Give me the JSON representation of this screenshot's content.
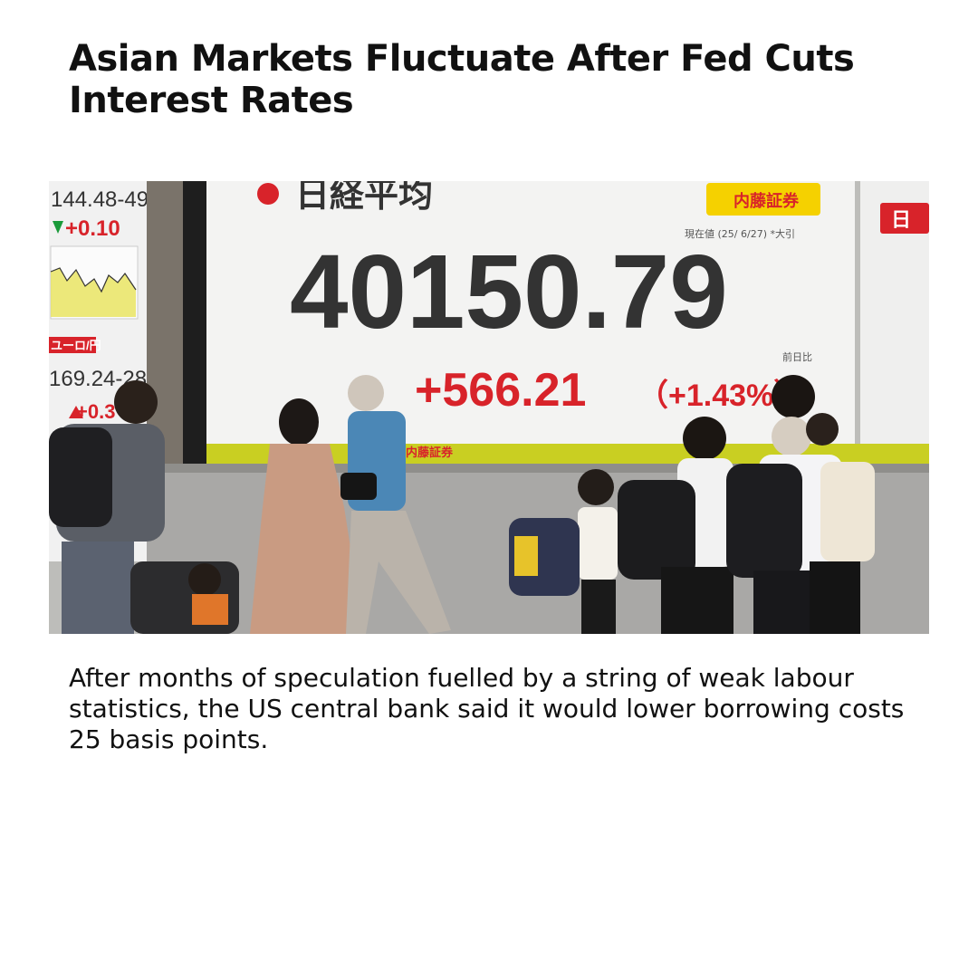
{
  "article": {
    "headline": "Asian Markets Fluctuate After Fed Cuts Interest Rates",
    "summary": "After months of speculation fuelled by a string of weak labour statistics, the US central bank said it would lower borrowing costs 25 basis points."
  },
  "photo": {
    "board_title": "日経平均",
    "broker": "内藤証券",
    "timestamp": "現在値 (25/ 6/27) *大引",
    "index_value": "40150.79",
    "change_label": "前日比",
    "change": "+566.21",
    "change_pct": "（+1.43%）",
    "left_panel_top": "144.48-49",
    "left_panel_change": "+0.10",
    "left_panel_currency": "ユーロ/円",
    "left_panel_bottom": "169.24-28",
    "left_panel_change2": "+0.3",
    "right_partial_label": "日"
  },
  "colors": {
    "board_red": "#d8232a",
    "index_text": "#333333",
    "broker_yellow": "#f5d100",
    "down_green": "#1a9a3a"
  }
}
